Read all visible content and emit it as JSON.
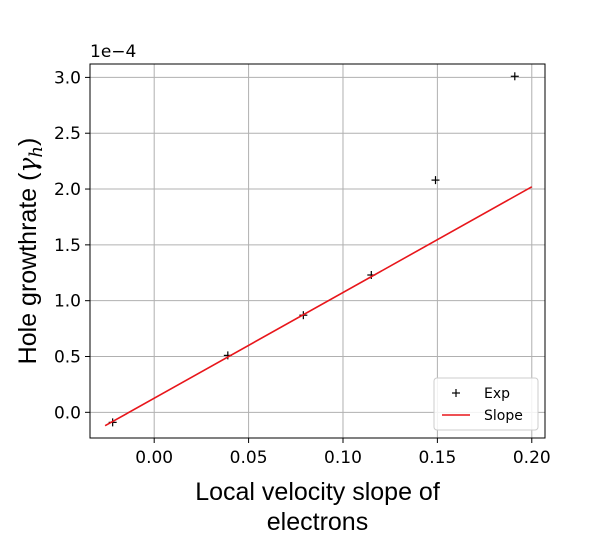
{
  "chart_data": {
    "type": "scatter",
    "title": "",
    "xlabel_lines": [
      "Local velocity slope of",
      "electrons"
    ],
    "ylabel": "Hole growthrate (",
    "ylabel_symbol": "γ",
    "ylabel_subscript": "h",
    "ylabel_close": ")",
    "offset_text": "1e−4",
    "xlim": [
      -0.034,
      0.207
    ],
    "ylim": [
      -0.23,
      3.12
    ],
    "y_scale_factor": 0.0001,
    "xticks": [
      0.0,
      0.05,
      0.1,
      0.15,
      0.2
    ],
    "xtick_labels": [
      "0.00",
      "0.05",
      "0.10",
      "0.15",
      "0.20"
    ],
    "yticks": [
      0.0,
      0.5,
      1.0,
      1.5,
      2.0,
      2.5,
      3.0
    ],
    "ytick_labels": [
      "0.0",
      "0.5",
      "1.0",
      "1.5",
      "2.0",
      "2.5",
      "3.0"
    ],
    "grid": true,
    "legend_position": "bottom-right",
    "series": [
      {
        "name": "Exp",
        "type": "scatter",
        "marker": "+",
        "color": "#000000",
        "x": [
          -0.022,
          0.039,
          0.079,
          0.115,
          0.149,
          0.191
        ],
        "y": [
          -0.09,
          0.51,
          0.87,
          1.23,
          2.08,
          3.01
        ]
      },
      {
        "name": "Slope",
        "type": "line",
        "color": "#e8161b",
        "x": [
          -0.026,
          0.2
        ],
        "y": [
          -0.12,
          2.02
        ]
      }
    ]
  }
}
